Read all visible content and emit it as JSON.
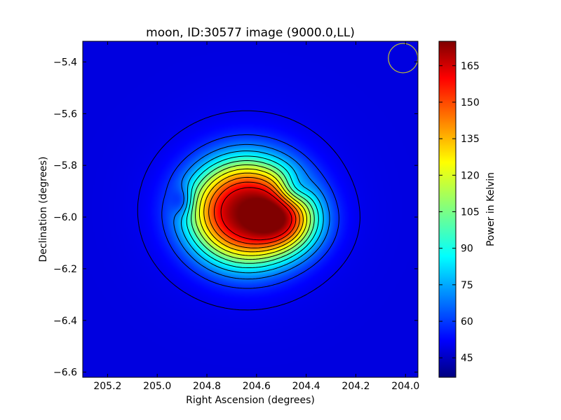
{
  "chart_data": {
    "type": "heatmap",
    "title": "moon, ID:30577 image (9000.0,LL)",
    "xlabel": "Right Ascension (degrees)",
    "ylabel": "Declination (degrees)",
    "colorbar_label": "Power in Kelvin",
    "colormap": "jet",
    "xlim": [
      205.3,
      203.95
    ],
    "ylim": [
      -6.62,
      -5.32
    ],
    "x_ticks": [
      205.2,
      205.0,
      204.8,
      204.6,
      204.4,
      204.2,
      204.0
    ],
    "x_tick_labels": [
      "205.2",
      "205.0",
      "204.8",
      "204.6",
      "204.4",
      "204.2",
      "204.0"
    ],
    "y_ticks": [
      -5.4,
      -5.6,
      -5.8,
      -6.0,
      -6.2,
      -6.4,
      -6.6
    ],
    "y_tick_labels": [
      "−5.4",
      "−5.6",
      "−5.8",
      "−6.0",
      "−6.2",
      "−6.4",
      "−6.6"
    ],
    "colorbar_range": [
      37,
      175
    ],
    "colorbar_ticks": [
      45,
      60,
      75,
      90,
      105,
      120,
      135,
      150,
      165
    ],
    "colorbar_tick_labels": [
      "45",
      "60",
      "75",
      "90",
      "105",
      "120",
      "135",
      "150",
      "165"
    ],
    "background_value": 50,
    "peak": {
      "ra": 204.64,
      "dec": -5.98,
      "value": 172
    },
    "cold_spot": {
      "ra": 204.9,
      "dec": -5.94,
      "value": 38
    },
    "contour_levels": [
      52,
      60,
      70,
      80,
      90,
      100,
      110,
      120,
      130,
      140,
      150,
      160
    ],
    "beam": {
      "ra": 204.01,
      "dec": -5.385,
      "color": "#b5b53c"
    },
    "contour_color": "#000000",
    "grid": false
  }
}
